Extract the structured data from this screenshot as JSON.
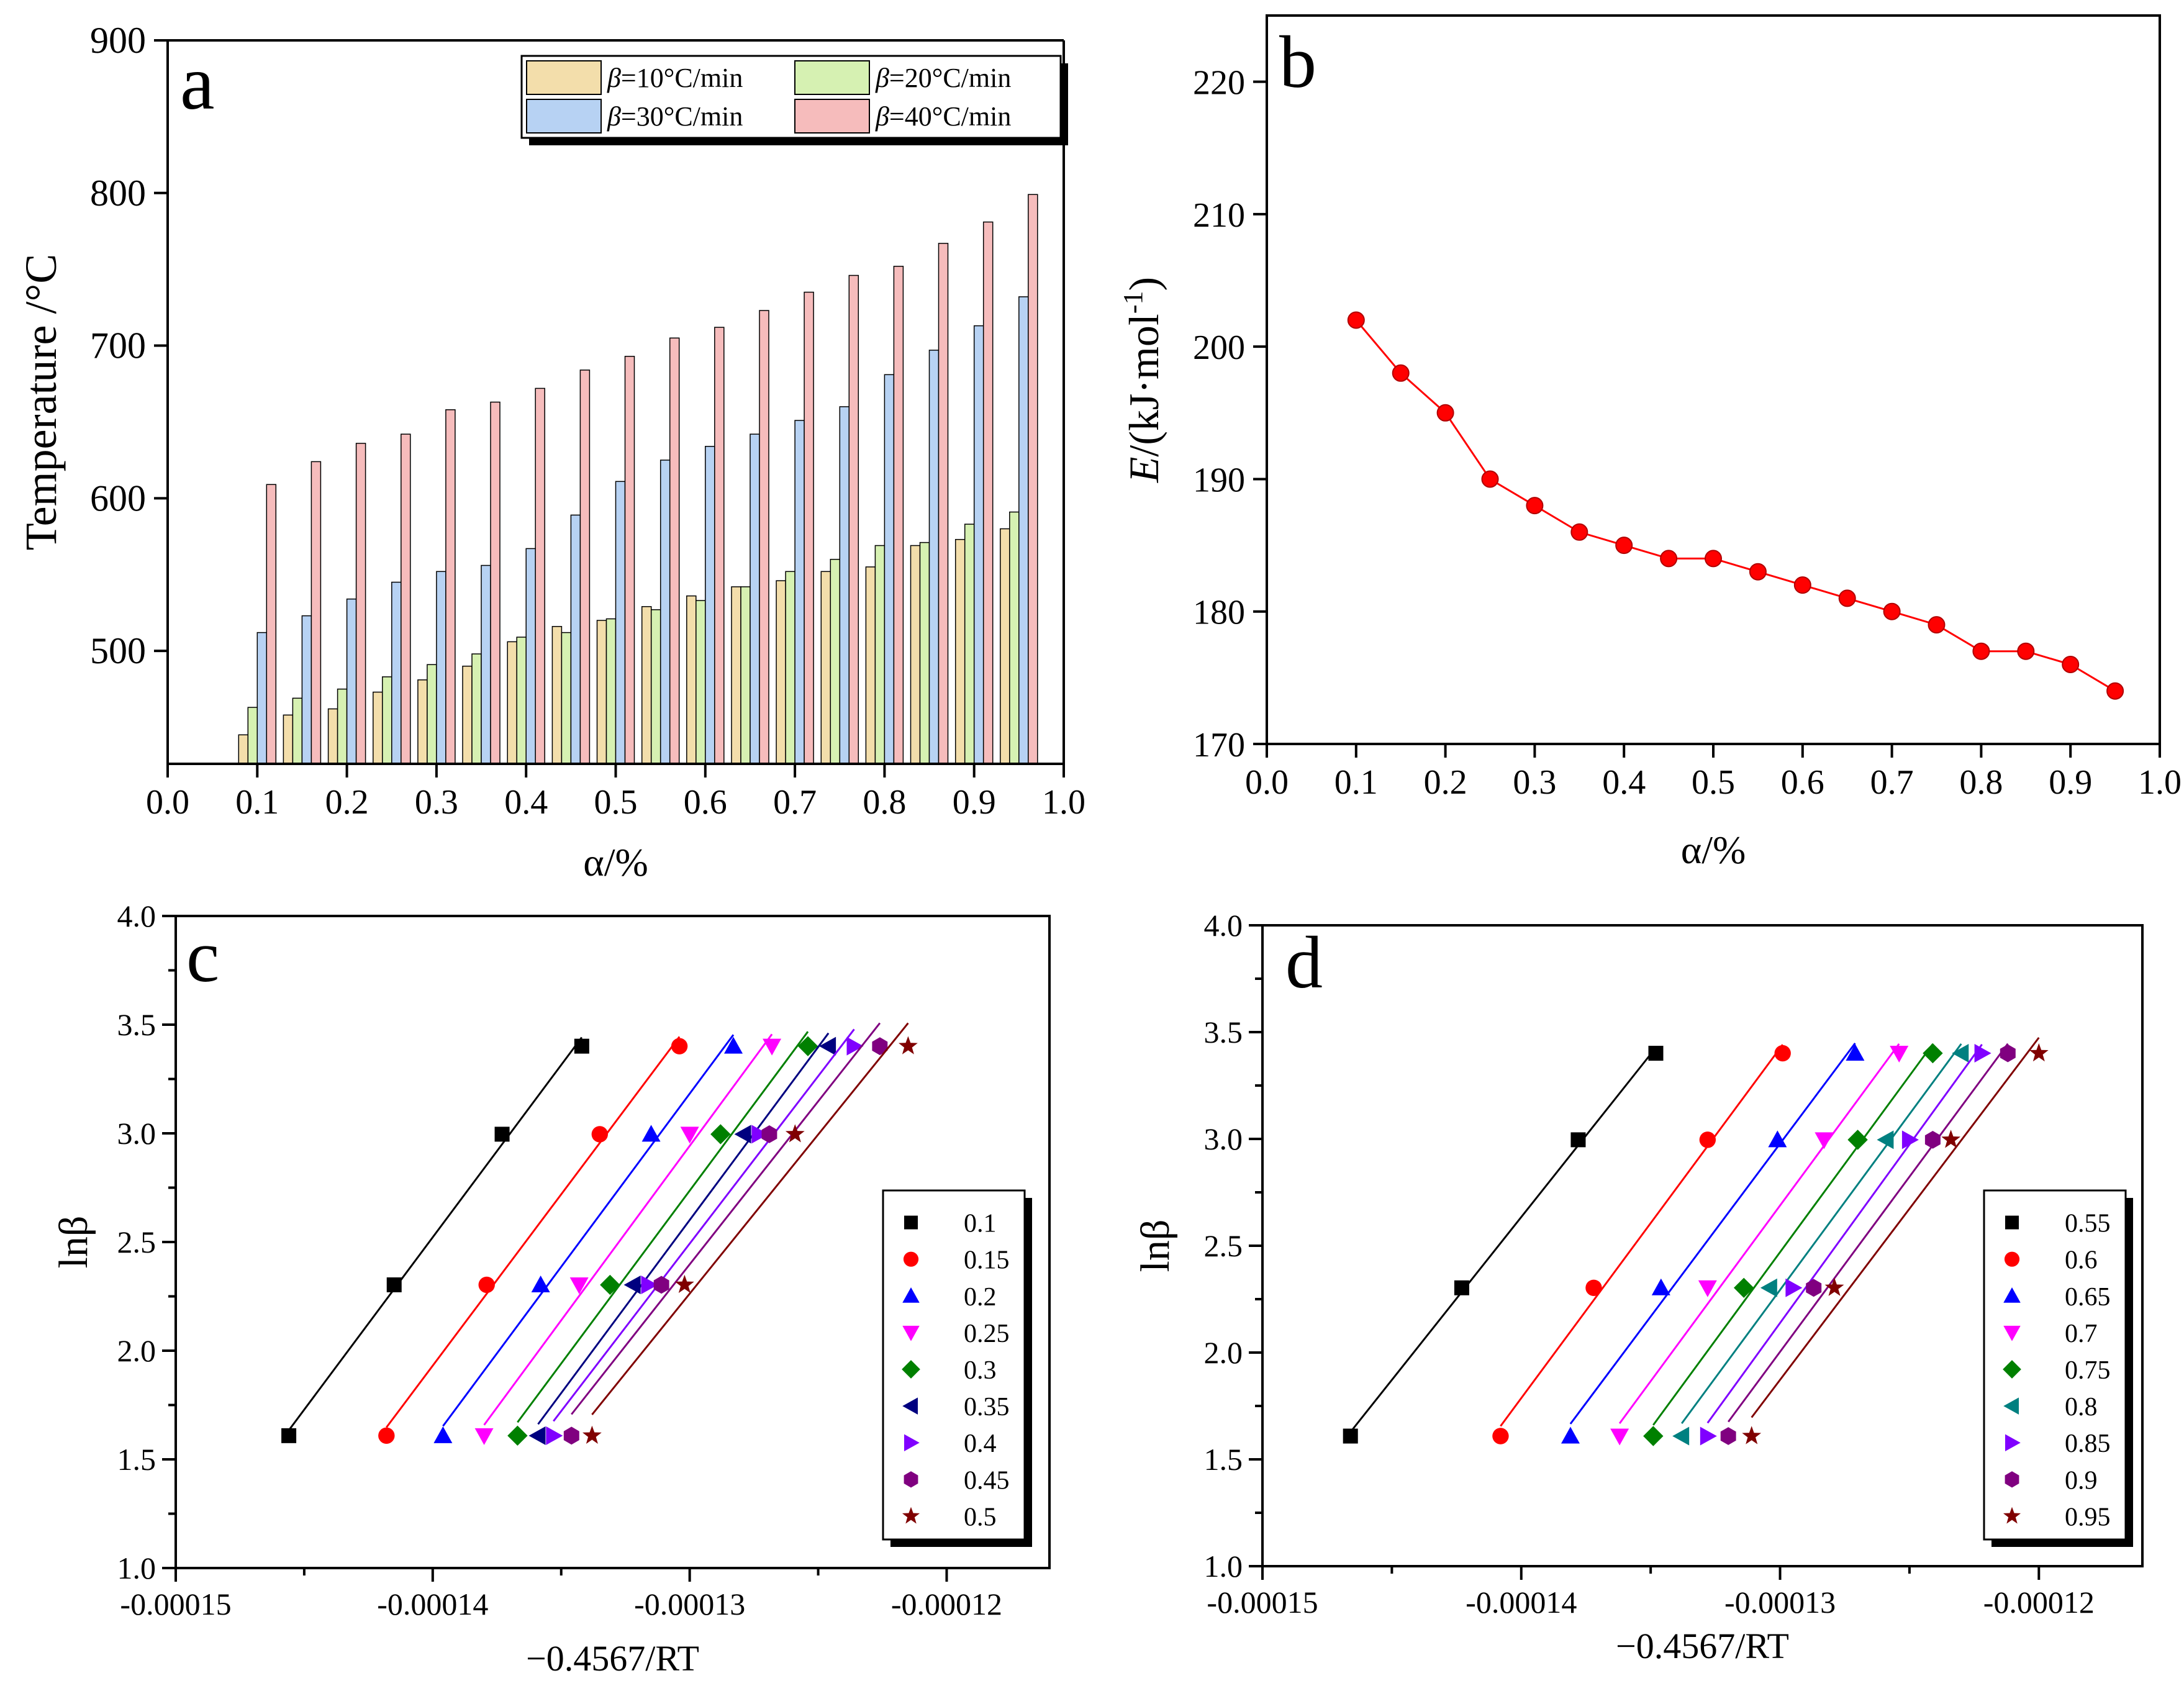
{
  "chart_data": [
    {
      "panel": "a",
      "type": "bar",
      "panel_label": "a",
      "xlabel": "α/%",
      "ylabel": "Temperature /°C",
      "xlim": [
        0.0,
        1.0
      ],
      "ylim": [
        426,
        900
      ],
      "xticks": [
        "0.0",
        "0.1",
        "0.2",
        "0.3",
        "0.4",
        "0.5",
        "0.6",
        "0.7",
        "0.8",
        "0.9",
        "1.0"
      ],
      "yticks": [
        "500",
        "600",
        "700",
        "800",
        "900"
      ],
      "categories": [
        0.1,
        0.15,
        0.2,
        0.25,
        0.3,
        0.35,
        0.4,
        0.45,
        0.5,
        0.55,
        0.6,
        0.65,
        0.7,
        0.75,
        0.8,
        0.85,
        0.9,
        0.95
      ],
      "legend_position": "top-right",
      "series": [
        {
          "name_prefix": "β",
          "name_suffix": "=10°C/min",
          "color": "#f3deab",
          "values": [
            445,
            458,
            462,
            473,
            481,
            490,
            506,
            516,
            520,
            529,
            536,
            542,
            546,
            552,
            555,
            569,
            573,
            580
          ]
        },
        {
          "name_prefix": "β",
          "name_suffix": "=20°C/min",
          "color": "#d6f1b2",
          "values": [
            463,
            469,
            475,
            483,
            491,
            498,
            509,
            512,
            521,
            527,
            533,
            542,
            552,
            560,
            569,
            571,
            583,
            591
          ]
        },
        {
          "name_prefix": "β",
          "name_suffix": "=30°C/min",
          "color": "#b7d2f3",
          "values": [
            512,
            523,
            534,
            545,
            552,
            556,
            567,
            589,
            611,
            625,
            634,
            642,
            651,
            660,
            681,
            697,
            713,
            732
          ]
        },
        {
          "name_prefix": "β",
          "name_suffix": "=40°C/min",
          "color": "#f6bcbc",
          "values": [
            609,
            624,
            636,
            642,
            658,
            663,
            672,
            684,
            693,
            705,
            712,
            723,
            735,
            746,
            752,
            767,
            781,
            799
          ]
        }
      ]
    },
    {
      "panel": "b",
      "type": "line",
      "panel_label": "b",
      "xlabel": "α/%",
      "ylabel_italic": "E",
      "ylabel_rest": "/(kJ·mol",
      "ylabel_sup": "-1",
      "ylabel_end": ")",
      "xlim": [
        0.0,
        1.0
      ],
      "ylim": [
        170,
        225
      ],
      "xticks": [
        "0.0",
        "0.1",
        "0.2",
        "0.3",
        "0.4",
        "0.5",
        "0.6",
        "0.7",
        "0.8",
        "0.9",
        "1.0"
      ],
      "yticks": [
        "170",
        "180",
        "190",
        "200",
        "210",
        "220"
      ],
      "color": "#ff0000",
      "x": [
        0.1,
        0.15,
        0.2,
        0.25,
        0.3,
        0.35,
        0.4,
        0.45,
        0.5,
        0.55,
        0.6,
        0.65,
        0.7,
        0.75,
        0.8,
        0.85,
        0.9,
        0.95
      ],
      "y": [
        202,
        198,
        195,
        190,
        188,
        186,
        185,
        184,
        184,
        183,
        182,
        181,
        180,
        179,
        177,
        177,
        176,
        174
      ]
    },
    {
      "panel": "c",
      "type": "scatter",
      "panel_label": "c",
      "xlabel": "−0.4567/RT",
      "ylabel": "lnβ",
      "xlim": [
        -0.00015,
        -0.000116
      ],
      "ylim": [
        1.0,
        4.0
      ],
      "xticks": [
        "-0.00015",
        "-0.00014",
        "-0.00013",
        "-0.00012"
      ],
      "yticks": [
        "1.0",
        "1.5",
        "2.0",
        "2.5",
        "3.0",
        "3.5",
        "4.0"
      ],
      "y_points": [
        1.609,
        2.303,
        2.996,
        3.401
      ],
      "legend_position": "right",
      "series": [
        {
          "name": "0.1",
          "color": "#000000",
          "marker": "square",
          "x": [
            -0.0001456,
            -0.0001415,
            -0.0001373,
            -0.0001342
          ]
        },
        {
          "name": "0.15",
          "color": "#ff0000",
          "marker": "circle",
          "x": [
            -0.0001418,
            -0.0001379,
            -0.0001335,
            -0.0001304
          ]
        },
        {
          "name": "0.2",
          "color": "#0000ff",
          "marker": "triUp",
          "x": [
            -0.0001396,
            -0.0001358,
            -0.0001315,
            -0.0001283
          ]
        },
        {
          "name": "0.25",
          "color": "#ff00ff",
          "marker": "triDown",
          "x": [
            -0.000138,
            -0.0001343,
            -0.00013,
            -0.0001268
          ]
        },
        {
          "name": "0.3",
          "color": "#008000",
          "marker": "diamond",
          "x": [
            -0.0001367,
            -0.0001331,
            -0.0001288,
            -0.0001254
          ]
        },
        {
          "name": "0.35",
          "color": "#000080",
          "marker": "triLeft",
          "x": [
            -0.0001359,
            -0.0001322,
            -0.0001279,
            -0.0001246
          ]
        },
        {
          "name": "0.4",
          "color": "#8000ff",
          "marker": "triRight",
          "x": [
            -0.0001353,
            -0.0001316,
            -0.0001273,
            -0.0001236
          ]
        },
        {
          "name": "0.45",
          "color": "#800080",
          "marker": "hexagon",
          "x": [
            -0.0001346,
            -0.0001311,
            -0.0001269,
            -0.0001226
          ]
        },
        {
          "name": "0.5",
          "color": "#800000",
          "marker": "star",
          "x": [
            -0.0001338,
            -0.0001302,
            -0.0001259,
            -0.0001215
          ]
        }
      ]
    },
    {
      "panel": "d",
      "type": "scatter",
      "panel_label": "d",
      "xlabel": "−0.4567/RT",
      "ylabel": "lnβ",
      "xlim": [
        -0.00015,
        -0.000116
      ],
      "ylim": [
        1.0,
        4.0
      ],
      "xticks": [
        "-0.00015",
        "-0.00014",
        "-0.00013",
        "-0.00012"
      ],
      "yticks": [
        "1.0",
        "1.5",
        "2.0",
        "2.5",
        "3.0",
        "3.5",
        "4.0"
      ],
      "y_points": [
        1.609,
        2.303,
        2.996,
        3.401
      ],
      "legend_position": "right",
      "series": [
        {
          "name": "0.55",
          "color": "#000000",
          "marker": "square",
          "x": [
            -0.0001466,
            -0.0001423,
            -0.0001378,
            -0.0001348
          ]
        },
        {
          "name": "0.6",
          "color": "#ff0000",
          "marker": "circle",
          "x": [
            -0.0001408,
            -0.0001372,
            -0.0001328,
            -0.0001299
          ]
        },
        {
          "name": "0.65",
          "color": "#0000ff",
          "marker": "triUp",
          "x": [
            -0.0001381,
            -0.0001346,
            -0.0001301,
            -0.0001271
          ]
        },
        {
          "name": "0.7",
          "color": "#ff00ff",
          "marker": "triDown",
          "x": [
            -0.0001362,
            -0.0001328,
            -0.0001283,
            -0.0001254
          ]
        },
        {
          "name": "0.75",
          "color": "#008000",
          "marker": "diamond",
          "x": [
            -0.0001349,
            -0.0001314,
            -0.000127,
            -0.0001241
          ]
        },
        {
          "name": "0.8",
          "color": "#008080",
          "marker": "triLeft",
          "x": [
            -0.0001338,
            -0.0001304,
            -0.0001259,
            -0.000123
          ]
        },
        {
          "name": "0.85",
          "color": "#8000ff",
          "marker": "triRight",
          "x": [
            -0.0001328,
            -0.0001295,
            -0.000125,
            -0.0001222
          ]
        },
        {
          "name": "0.9",
          "color": "#800080",
          "marker": "hexagon",
          "x": [
            -0.000132,
            -0.0001287,
            -0.0001241,
            -0.0001212
          ]
        },
        {
          "name": "0.95",
          "color": "#800000",
          "marker": "star",
          "x": [
            -0.0001311,
            -0.0001279,
            -0.0001234,
            -0.00012
          ]
        }
      ]
    }
  ]
}
